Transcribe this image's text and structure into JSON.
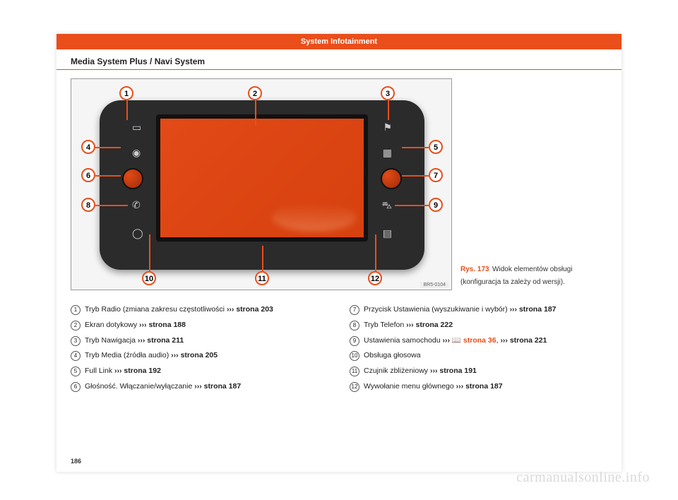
{
  "header": {
    "title": "System Infotainment"
  },
  "section": {
    "title": "Media System Plus / Navi System"
  },
  "figure": {
    "ref_label": "Rys. 173",
    "caption": "Widok elementów obsługi (konfiguracja ta zależy od wersji).",
    "ref_code": "BR5-0104",
    "callouts": [
      "1",
      "2",
      "3",
      "4",
      "5",
      "6",
      "7",
      "8",
      "9",
      "10",
      "11",
      "12"
    ],
    "colors": {
      "accent": "#e94e1b",
      "device_body": "#2b2b2b",
      "screen_fill": "#e24a17",
      "page_bg": "#ffffff"
    }
  },
  "legend_left": [
    {
      "n": "1",
      "text": "Tryb Radio (zmiana zakresu częstotliwości ",
      "link": "››› strona 203"
    },
    {
      "n": "2",
      "text": "Ekran dotykowy ",
      "link": "››› strona 188"
    },
    {
      "n": "3",
      "text": "Tryb Nawigacja ",
      "link": "››› strona 211"
    },
    {
      "n": "4",
      "text": "Tryb Media (źródła audio) ",
      "link": "››› strona 205"
    },
    {
      "n": "5",
      "text": "Full Link ",
      "link": "››› strona 192"
    },
    {
      "n": "6",
      "text": "Głośność. Włączanie/wyłączanie ",
      "link": "››› strona 187"
    }
  ],
  "legend_right": [
    {
      "n": "7",
      "text": "Przycisk Ustawienia (wyszukiwanie i wybór) ",
      "link": "››› strona 187"
    },
    {
      "n": "8",
      "text": "Tryb Telefon ",
      "link": "››› strona 222"
    },
    {
      "n": "9",
      "text": "Ustawienia samochodu ",
      "icon": "›››",
      "red": "📖 strona 36",
      "tail": ", ",
      "link": "››› strona 221"
    },
    {
      "n": "10",
      "text": "Obsługa głosowa",
      "link": ""
    },
    {
      "n": "11",
      "text": "Czujnik zbliżeniowy ",
      "link": "››› strona 191"
    },
    {
      "n": "12",
      "text": "Wywołanie menu głównego ",
      "link": "››› strona 187"
    }
  ],
  "page_number": "186",
  "watermark": "carmanualsonline.info"
}
